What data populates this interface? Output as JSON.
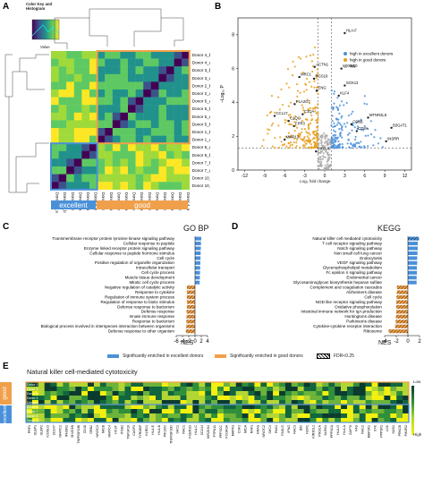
{
  "panels": {
    "a": {
      "letter": "A",
      "color_key_title": "Color Key and Histogram",
      "color_key_axis": "Value",
      "color_key_ylabel": "Count",
      "rows": [
        "Donor 4_b",
        "Donor 4_a",
        "Donor 3_b",
        "Donor 3_a",
        "Donor 2_b",
        "Donor 2_a",
        "Donor 6_a",
        "Donor 6_b",
        "Donor 5_a",
        "Donor 5_b",
        "Donor 1_b",
        "Donor 1_a",
        "Donor 8_a",
        "Donor 8_b",
        "Donor 7_b",
        "Donor 7_a",
        "Donor 10_b",
        "Donor 10_a"
      ],
      "cols": [
        "Donor 10_a",
        "Donor 10_b",
        "Donor 7_b",
        "Donor 7_a",
        "Donor 8_a",
        "Donor 8_b",
        "Donor 1_b",
        "Donor 1_a",
        "Donor 5_b",
        "Donor 5_a",
        "Donor 6_b",
        "Donor 6_a",
        "Donor 2_b",
        "Donor 2_a",
        "Donor 3_b",
        "Donor 3_a",
        "Donor 4_b",
        "Donor 4_a"
      ],
      "group_excellent": "excellent",
      "group_good": "good",
      "colors": {
        "excellent": "#4a90d9",
        "good": "#f0a04b"
      }
    },
    "b": {
      "letter": "B",
      "xlabel": "Log₂ fold change",
      "ylabel": "−Log₁₀ P",
      "xticks": [
        "-12",
        "-9",
        "-6",
        "-3",
        "0",
        "3",
        "6",
        "9",
        "12"
      ],
      "yticks": [
        "0",
        "2",
        "4",
        "6",
        "8"
      ],
      "legend": [
        {
          "label": "high in excellent donors",
          "color": "#4a90d9"
        },
        {
          "label": "high in good donors",
          "color": "#e6a020"
        },
        {
          "label": "NS",
          "color": "#aaaaaa"
        }
      ],
      "genes": [
        "HLA-F",
        "ACTN1",
        "UBXN10",
        "MRC1",
        "RGS18",
        "ENG",
        "SOX13",
        "KLF4",
        "PLA2G7",
        "C1QA",
        "CCL17",
        "FPR3",
        "C1QC",
        "CXCL8",
        "MMP12",
        "MTNR2L8",
        "B3GAT1",
        "INSRR",
        "CD8B",
        "CD8A"
      ]
    },
    "c": {
      "letter": "C",
      "title": "GO BP",
      "xlabel": "NES",
      "xticks": [
        "-6",
        "-4",
        "-2",
        "0",
        "2",
        "4"
      ],
      "terms": [
        {
          "label": "Transmembrane receptor protein tyrosine kinase signaling pathway",
          "nes": 2.0,
          "group": "excellent",
          "fdr": false
        },
        {
          "label": "Cellular response to peptide",
          "nes": 1.9,
          "group": "excellent",
          "fdr": false
        },
        {
          "label": "Enzyme linked receptor protein signaling pathway",
          "nes": 1.85,
          "group": "excellent",
          "fdr": false
        },
        {
          "label": "Cellular response to peptide hormone stimulus",
          "nes": 1.8,
          "group": "excellent",
          "fdr": false
        },
        {
          "label": "Cell cycle",
          "nes": 1.75,
          "group": "excellent",
          "fdr": false
        },
        {
          "label": "Positive regulation of organelle organization",
          "nes": 1.7,
          "group": "excellent",
          "fdr": false
        },
        {
          "label": "Intracellular transport",
          "nes": 1.65,
          "group": "excellent",
          "fdr": false
        },
        {
          "label": "Cell cycle process",
          "nes": 1.6,
          "group": "excellent",
          "fdr": false
        },
        {
          "label": "Muscle tissue development",
          "nes": 1.55,
          "group": "excellent",
          "fdr": false
        },
        {
          "label": "Mitotic cell cycle process",
          "nes": 1.5,
          "group": "excellent",
          "fdr": false
        },
        {
          "label": "Negative regulation of catalytic activity",
          "nes": -2.6,
          "group": "good",
          "fdr": true
        },
        {
          "label": "Response to cytokine",
          "nes": -2.6,
          "group": "good",
          "fdr": true
        },
        {
          "label": "Regulation of immune system process",
          "nes": -2.6,
          "group": "good",
          "fdr": true
        },
        {
          "label": "Regulation of response to biotic stimulus",
          "nes": -2.6,
          "group": "good",
          "fdr": true
        },
        {
          "label": "Defense response to bacterium",
          "nes": -2.6,
          "group": "good",
          "fdr": true
        },
        {
          "label": "Defense response",
          "nes": -2.7,
          "group": "good",
          "fdr": true
        },
        {
          "label": "Innate immune response",
          "nes": -2.7,
          "group": "good",
          "fdr": true
        },
        {
          "label": "Response to bacterium",
          "nes": -2.75,
          "group": "good",
          "fdr": true
        },
        {
          "label": "Biological process involved in interspecies interaction between organisms",
          "nes": -2.8,
          "group": "good",
          "fdr": true
        },
        {
          "label": "Defense response to other organism",
          "nes": -2.9,
          "group": "good",
          "fdr": true
        }
      ]
    },
    "d": {
      "letter": "D",
      "title": "KEGG",
      "xlabel": "NES",
      "xticks": [
        "-4",
        "-2",
        "0",
        "2"
      ],
      "terms": [
        {
          "label": "Natural killer cell mediated cytotoxicity",
          "nes": 1.9,
          "group": "excellent",
          "fdr": true
        },
        {
          "label": "T cell receptor signaling pathway",
          "nes": 1.7,
          "group": "excellent",
          "fdr": false
        },
        {
          "label": "Notch signaling pathway",
          "nes": 1.7,
          "group": "excellent",
          "fdr": false
        },
        {
          "label": "Non small cell lung cancer",
          "nes": 1.65,
          "group": "excellent",
          "fdr": false
        },
        {
          "label": "Endocytosis",
          "nes": 1.6,
          "group": "excellent",
          "fdr": false
        },
        {
          "label": "VEGF signaling pathway",
          "nes": 1.6,
          "group": "excellent",
          "fdr": false
        },
        {
          "label": "Glycerophospholipid metabolism",
          "nes": 1.55,
          "group": "excellent",
          "fdr": false
        },
        {
          "label": "Fc epsilon ri signaling pathway",
          "nes": 1.55,
          "group": "excellent",
          "fdr": false
        },
        {
          "label": "Endometrial cancer",
          "nes": 1.5,
          "group": "excellent",
          "fdr": false
        },
        {
          "label": "Glycosaminoglycan biosynthesis heparan sulfate",
          "nes": 1.5,
          "group": "excellent",
          "fdr": false
        },
        {
          "label": "Complement and coagulation cascades",
          "nes": -1.9,
          "group": "good",
          "fdr": true
        },
        {
          "label": "Alzheimers disease",
          "nes": -1.9,
          "group": "good",
          "fdr": true
        },
        {
          "label": "Cell cycle",
          "nes": -1.95,
          "group": "good",
          "fdr": true
        },
        {
          "label": "NOD like receptor signaling pathway",
          "nes": -2.0,
          "group": "good",
          "fdr": true
        },
        {
          "label": "Oxidative phosphorylation",
          "nes": -2.0,
          "group": "good",
          "fdr": true
        },
        {
          "label": "Intestinal immune network for IgA production",
          "nes": -2.0,
          "group": "good",
          "fdr": true
        },
        {
          "label": "Huntingtons disease",
          "nes": -2.05,
          "group": "good",
          "fdr": true
        },
        {
          "label": "Parkinsons disease",
          "nes": -2.1,
          "group": "good",
          "fdr": true
        },
        {
          "label": "Cytokine-cytokine receptor interaction",
          "nes": -2.2,
          "group": "good",
          "fdr": true
        },
        {
          "label": "Ribosome",
          "nes": -3.3,
          "group": "good",
          "fdr": true
        }
      ]
    },
    "legend_cd": [
      {
        "label": "Significantly enriched in excellent donors",
        "color": "#4a90d9",
        "hatched": false
      },
      {
        "label": "Significantly enriched in good donors",
        "color": "#f0a04b",
        "hatched": false
      },
      {
        "label": "FDR<0.25",
        "color": "#ffffff",
        "hatched": true
      }
    ],
    "e": {
      "letter": "E",
      "title": "Natural killer cell-mediated cytotoxicity",
      "scale_low": "Low",
      "scale_high": "High",
      "row_group_good": "good",
      "row_group_excellent": "excellent",
      "rows": [
        "Donor 1",
        "Donor 2",
        "Donor 3",
        "Donor 4",
        "Donor 5",
        "Donor 6",
        "Donor 7",
        "Donor 8",
        "Donor 10"
      ],
      "genes": [
        "PRF1",
        "ULBP1",
        "ULBP2",
        "ICOSLG",
        "CD247",
        "NFATC1",
        "IFNGR2",
        "SH2D1B",
        "TNFRSF10B",
        "CD48",
        "GRB2",
        "NFATC3",
        "MICB",
        "NFATC4",
        "HCST",
        "ITGB2",
        "TNFSF10",
        "CASP3",
        "TYROBP",
        "KLRD1",
        "HLA-E",
        "HLA-B",
        "PIK3CD",
        "TNFRSF10D",
        "SHC1",
        "RAC1",
        "FCER1G",
        "HLA-C",
        "CD244",
        "KIR2DS4",
        "PTPN11",
        "PPP3CC",
        "FCGR3A",
        "MAPK3",
        "CSF2",
        "MICA",
        "RAF1",
        "KRAS",
        "NFATC2",
        "SHC4",
        "PAK1",
        "FASLG",
        "IFNG",
        "RAC3",
        "BID",
        "NCR1",
        "KIR3DL1",
        "PIK3CA",
        "KLRK1",
        "PPP3CA",
        "HLA-G",
        "HLA-A",
        "ZAP70",
        "FAS",
        "RAC2",
        "MAP2K1",
        "SYK",
        "PPP3R1",
        "LCK",
        "SOS1",
        "PRKCB",
        "PIK3R2"
      ]
    }
  }
}
